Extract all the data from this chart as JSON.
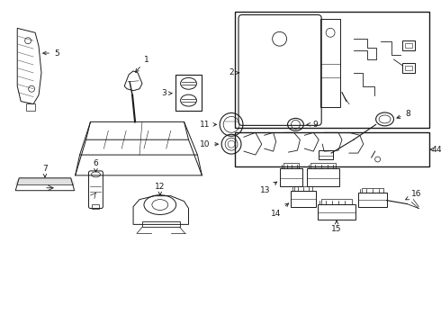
{
  "background_color": "#ffffff",
  "line_color": "#1a1a1a",
  "fig_width": 4.9,
  "fig_height": 3.6,
  "dpi": 100,
  "gray": "#888888",
  "lightgray": "#cccccc"
}
